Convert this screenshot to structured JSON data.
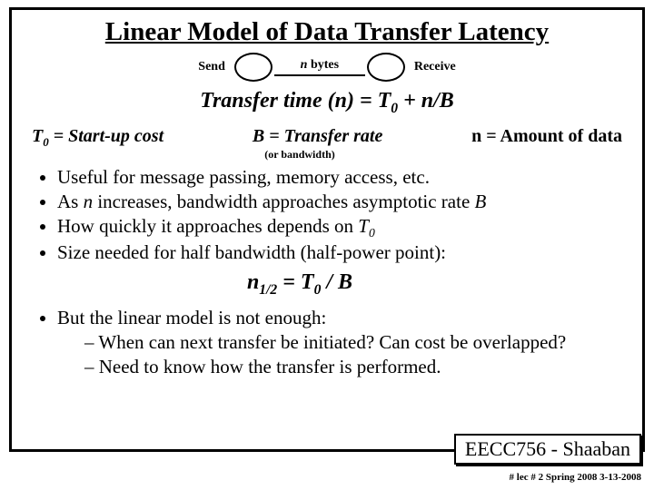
{
  "title": "Linear Model of Data Transfer Latency",
  "diagram": {
    "send": "Send",
    "nbytes_n": "n",
    "nbytes_rest": " bytes",
    "receive": "Receive"
  },
  "equation": {
    "lhs_a": "Transfer time (n)  =  T",
    "lhs_sub": "0",
    "lhs_b": " + n/B"
  },
  "defs": {
    "d1_a": "T",
    "d1_sub": "0",
    "d1_b": " = Start-up cost",
    "d2": "B = Transfer rate",
    "d3": "n =  Amount of data",
    "orbw": "(or bandwidth)"
  },
  "bullets1": {
    "b1": "Useful for message passing, memory access, etc.",
    "b2_a": "As ",
    "b2_i": "n",
    "b2_b": " increases, bandwidth approaches asymptotic rate ",
    "b2_i2": "B",
    "b3_a": "How quickly it approaches depends on ",
    "b3_i": "T",
    "b3_sub": "0",
    "b4": "Size needed for half bandwidth (half-power point):"
  },
  "halfpower": {
    "a": "n",
    "sub1": "1/2",
    "b": " = T",
    "sub2": "0",
    "c": " / B"
  },
  "bullets2": {
    "b1": "But the linear model is not enough:",
    "d1": "When can next transfer be initiated?  Can cost be overlapped?",
    "d2": "Need to know how the transfer is performed."
  },
  "footer": {
    "box": "EECC756 - Shaaban",
    "text": "#   lec # 2    Spring 2008  3-13-2008"
  }
}
